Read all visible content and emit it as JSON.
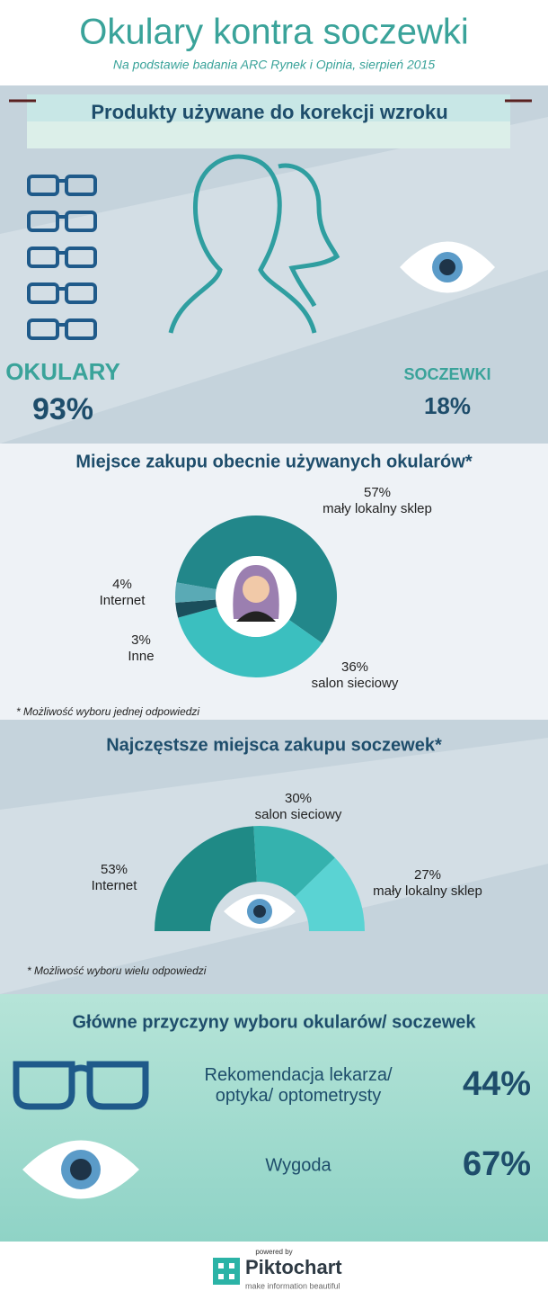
{
  "header": {
    "title": "Okulary kontra soczewki",
    "subtitle": "Na podstawie badania ARC Rynek i Opinia, sierpień 2015"
  },
  "products": {
    "title": "Produkty używane do korekcji wzroku",
    "glasses": {
      "label": "OKULARY",
      "value": "93%"
    },
    "lenses": {
      "label": "SOCZEWKI",
      "value": "18%"
    }
  },
  "chart_data": [
    {
      "type": "donut",
      "title": "Miejsce zakupu obecnie używanych okularów*",
      "categories": [
        "mały lokalny sklep",
        "salon sieciowy",
        "Inne",
        "Internet"
      ],
      "values": [
        57,
        36,
        3,
        4
      ],
      "value_labels": [
        "57%",
        "36%",
        "3%",
        "4%"
      ],
      "colors": [
        "#22878a",
        "#3bbfbf",
        "#1b4f5c",
        "#5aaab5"
      ],
      "note": "* Możliwość wyboru jednej odpowiedzi"
    },
    {
      "type": "half-donut",
      "title": "Najczęstsze miejsca zakupu soczewek*",
      "categories": [
        "Internet",
        "salon sieciowy",
        "mały lokalny sklep"
      ],
      "values": [
        53,
        30,
        27
      ],
      "value_labels": [
        "53%",
        "30%",
        "27%"
      ],
      "colors": [
        "#1f8a86",
        "#35b2ae",
        "#5ad3d3"
      ],
      "note": "* Możliwość wyboru wielu odpowiedzi"
    }
  ],
  "reasons": {
    "title": "Główne przyczyny wyboru okularów/ soczewek",
    "items": [
      {
        "label_lines": [
          "Rekomendacja lekarza/",
          "optyka/ optometrysty"
        ],
        "value": "44%"
      },
      {
        "label_lines": [
          "Wygoda"
        ],
        "value": "67%"
      }
    ]
  },
  "footer": {
    "powered": "powered by",
    "brand": "Piktochart",
    "tagline": "make information beautiful"
  }
}
